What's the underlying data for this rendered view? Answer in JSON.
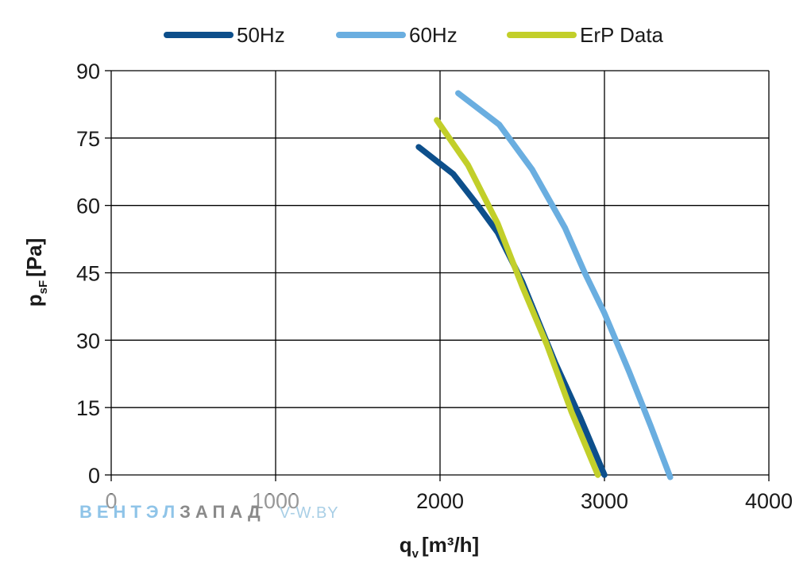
{
  "chart_data": {
    "type": "line",
    "title": "",
    "xlabel": "q",
    "xlabel_sub": "v",
    "xlabel_unit": "[m³/h]",
    "ylabel": "p",
    "ylabel_sub": "sF",
    "ylabel_unit": "[Pa]",
    "xlim": [
      0,
      4000
    ],
    "ylim": [
      0,
      90
    ],
    "xticks": [
      0,
      1000,
      2000,
      3000,
      4000
    ],
    "yticks": [
      0,
      15,
      30,
      45,
      60,
      75,
      90
    ],
    "grid": true,
    "legend": "top",
    "series": [
      {
        "name": "50Hz",
        "color": "#0d4f8b",
        "x": [
          1870,
          2080,
          2230,
          2350,
          2500,
          2700,
          2850,
          3000
        ],
        "y": [
          73,
          67,
          60,
          54,
          43,
          25,
          13,
          0
        ]
      },
      {
        "name": "60Hz",
        "color": "#6aaee0",
        "x": [
          2110,
          2360,
          2560,
          2760,
          2880,
          3000,
          3150,
          3280,
          3400
        ],
        "y": [
          85,
          78,
          68,
          55,
          45,
          36,
          23,
          11,
          -0.5
        ]
      },
      {
        "name": "ErP Data",
        "color": "#c2cf2a",
        "x": [
          1980,
          2170,
          2350,
          2500,
          2650,
          2800,
          2960
        ],
        "y": [
          79,
          69,
          56,
          42,
          29,
          14,
          0
        ]
      }
    ]
  },
  "watermark": {
    "part1": "ВЕНТЭЛ",
    "part2": "ЗАПАД",
    "site": "V-W.BY"
  }
}
